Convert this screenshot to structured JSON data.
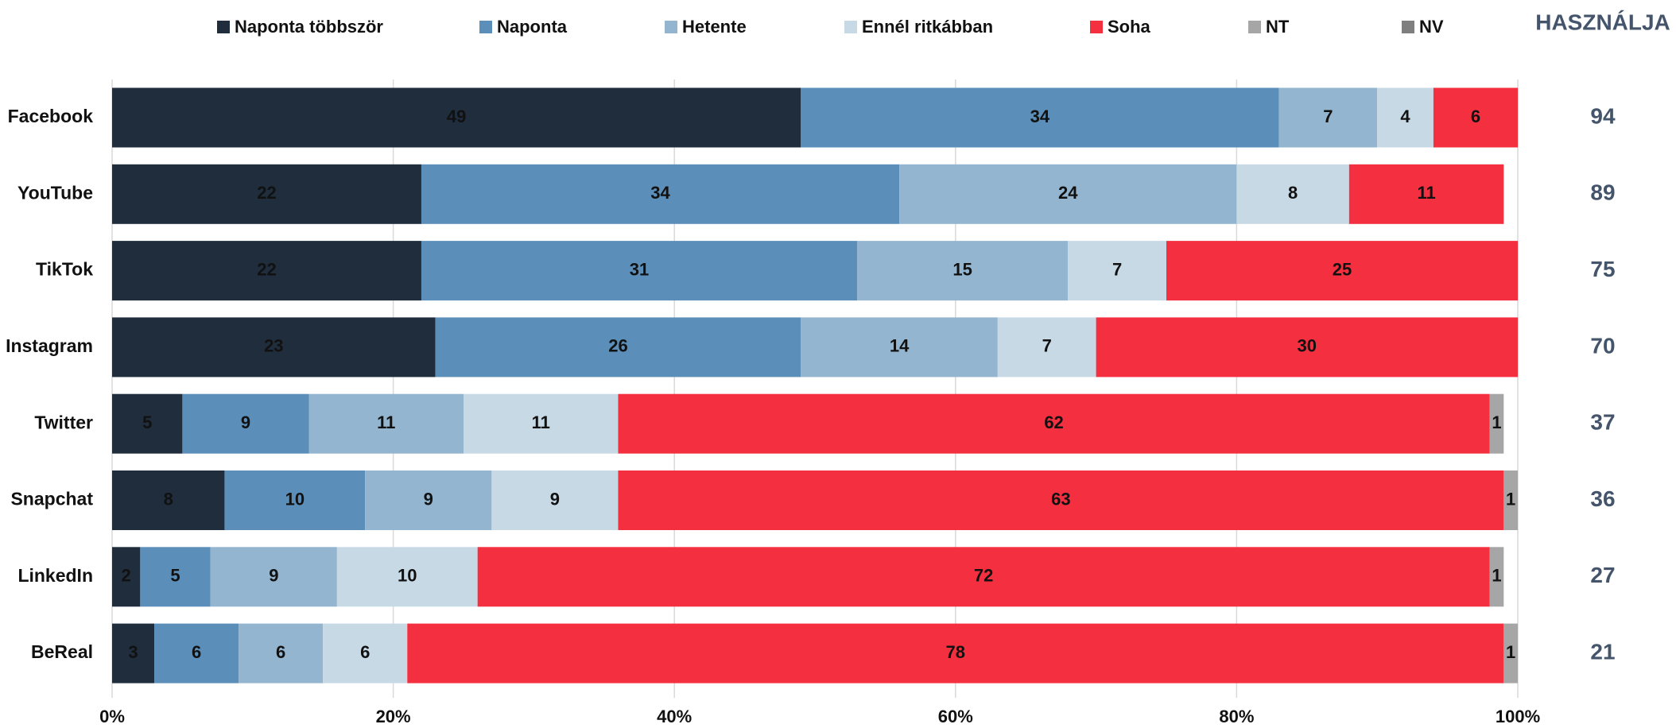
{
  "chart_data": {
    "type": "stacked_barh",
    "categories": [
      "Facebook",
      "YouTube",
      "TikTok",
      "Instagram",
      "Twitter",
      "Snapchat",
      "LinkedIn",
      "BeReal"
    ],
    "series": [
      {
        "name": "Naponta többször",
        "color": "#1f2d3d",
        "values": [
          49,
          22,
          22,
          23,
          5,
          8,
          2,
          3
        ]
      },
      {
        "name": "Naponta",
        "color": "#5b8fb9",
        "values": [
          34,
          34,
          31,
          26,
          9,
          10,
          5,
          6
        ]
      },
      {
        "name": "Hetente",
        "color": "#93b5cf",
        "values": [
          7,
          24,
          15,
          14,
          11,
          9,
          9,
          6
        ]
      },
      {
        "name": "Ennél ritkábban",
        "color": "#c8d9e6",
        "values": [
          4,
          8,
          7,
          7,
          11,
          9,
          10,
          6
        ]
      },
      {
        "name": "Soha",
        "color": "#f43040",
        "values": [
          6,
          11,
          25,
          30,
          62,
          63,
          72,
          78
        ]
      },
      {
        "name": "NT",
        "color": "#a6a6a6",
        "values": [
          null,
          null,
          null,
          null,
          1,
          1,
          1,
          1
        ]
      },
      {
        "name": "NV",
        "color": "#7f7f7f",
        "values": [
          null,
          null,
          null,
          null,
          null,
          null,
          null,
          null
        ]
      }
    ],
    "xlim": [
      0,
      100
    ],
    "xticks": [
      {
        "value": 0,
        "label": "0%"
      },
      {
        "value": 20,
        "label": "20%"
      },
      {
        "value": 40,
        "label": "40%"
      },
      {
        "value": 60,
        "label": "60%"
      },
      {
        "value": 80,
        "label": "80%"
      },
      {
        "value": 100,
        "label": "100%"
      }
    ],
    "grid": true,
    "usage_header": "HASZNÁLJA",
    "usage": [
      94,
      89,
      75,
      70,
      37,
      36,
      27,
      21
    ]
  }
}
